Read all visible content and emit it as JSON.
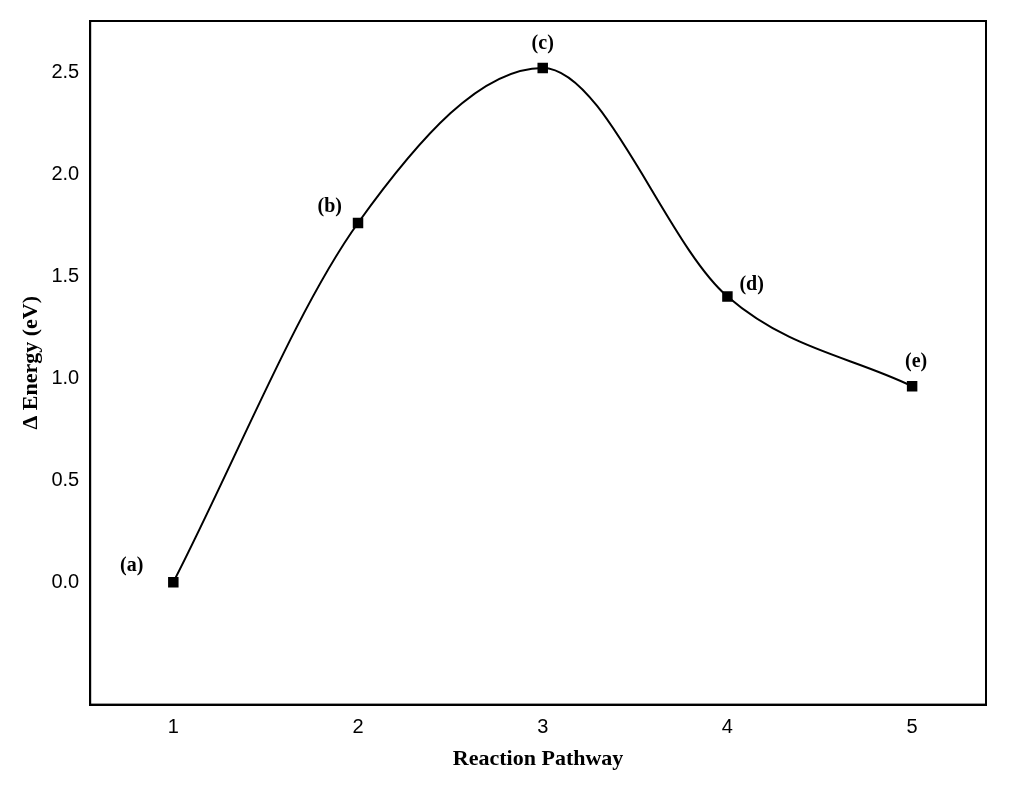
{
  "chart_data": {
    "type": "line",
    "x_label": "Reaction Pathway",
    "y_label": "Δ Energy (eV)",
    "x": [
      1,
      2,
      3,
      4,
      5
    ],
    "values": [
      0.0,
      1.76,
      2.52,
      1.4,
      0.96
    ],
    "annotations": [
      "(a)",
      "(b)",
      "(c)",
      "(d)",
      "(e)"
    ],
    "color": "#000000",
    "marker": "square",
    "line_style": "solid",
    "xlim": [
      0.55,
      5.4
    ],
    "xticks": [
      1,
      2,
      3,
      4,
      5
    ],
    "ylim": [
      -0.6,
      2.75
    ],
    "yticks": [
      {
        "value": 0,
        "label": "0.0"
      },
      {
        "value": 0.5,
        "label": "0.5"
      },
      {
        "value": 1,
        "label": "1.0"
      },
      {
        "value": 1.5,
        "label": "1.5"
      },
      {
        "value": 2,
        "label": "2.0"
      },
      {
        "value": 2.5,
        "label": "2.5"
      }
    ],
    "grid": false
  }
}
